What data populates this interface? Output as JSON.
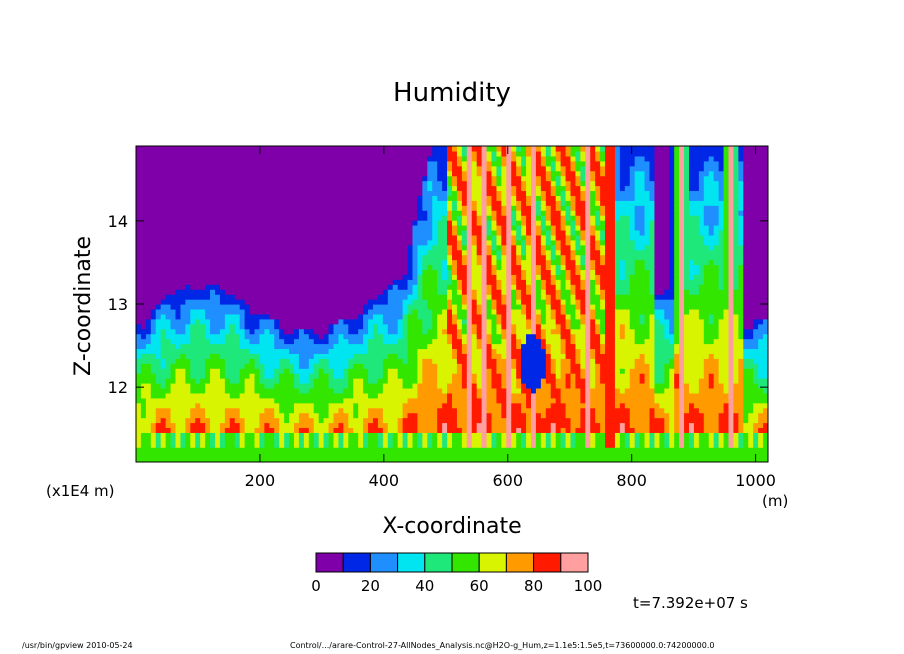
{
  "chart_data": {
    "type": "heatmap",
    "title": "Humidity",
    "xlabel": "X-coordinate",
    "ylabel": "Z-coordinate",
    "x_unit": "(m)",
    "y_unit": "(x1E4 m)",
    "xlim": [
      0,
      1020
    ],
    "ylim": [
      11.1,
      14.9
    ],
    "x_ticks": [
      200,
      400,
      600,
      800,
      1000
    ],
    "y_ticks": [
      12,
      13,
      14
    ],
    "colorbar": {
      "levels": [
        0,
        10,
        20,
        30,
        40,
        50,
        60,
        70,
        80,
        90,
        100
      ],
      "tick_labels": [
        "0",
        "20",
        "40",
        "60",
        "80",
        "100"
      ],
      "colors": [
        "#7f00a8",
        "#0026e6",
        "#1f8fff",
        "#00e5ef",
        "#1ee87a",
        "#33e600",
        "#d8f400",
        "#ff9b00",
        "#ff1a00",
        "#ff9f9f"
      ]
    },
    "field_description": {
      "background_dry_top": 5,
      "moist_bottom_layer_top": 11.45,
      "very_moist_plumes_x": [
        540,
        560,
        600,
        640,
        730,
        765,
        880,
        960
      ]
    }
  },
  "time_label": "t=7.392e+07 s",
  "footer": {
    "left": "/usr/bin/gpview   2010-05-24",
    "right": "Control/.../arare-Control-27-AllNodes_Analysis.nc@H2O-g_Hum,z=1.1e5:1.5e5,t=73600000.0:74200000.0"
  }
}
